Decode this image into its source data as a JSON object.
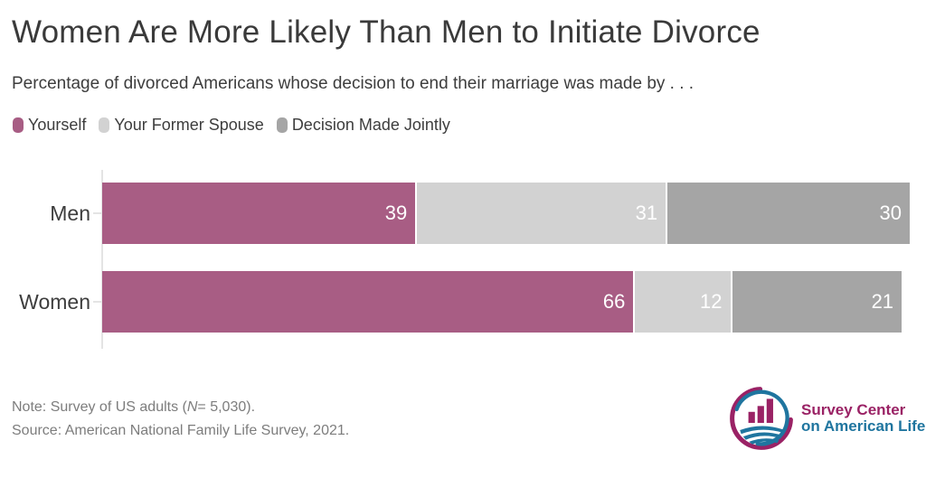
{
  "header": {
    "title": "Women Are More Likely Than Men to Initiate Divorce",
    "subtitle": "Percentage of divorced Americans whose decision to end their marriage was made by . . ."
  },
  "legend": [
    {
      "label": "Yourself",
      "color": "#a85d84"
    },
    {
      "label": "Your Former Spouse",
      "color": "#d2d2d2"
    },
    {
      "label": "Decision Made Jointly",
      "color": "#a5a5a5"
    }
  ],
  "chart_data": {
    "type": "bar",
    "orientation": "horizontal",
    "stacked": true,
    "categories": [
      "Men",
      "Women"
    ],
    "series": [
      {
        "name": "Yourself",
        "color": "#a85d84",
        "values": [
          39,
          66
        ]
      },
      {
        "name": "Your Former Spouse",
        "color": "#d2d2d2",
        "values": [
          31,
          12
        ]
      },
      {
        "name": "Decision Made Jointly",
        "color": "#a5a5a5",
        "values": [
          30,
          21
        ]
      }
    ],
    "xlim": [
      0,
      100
    ],
    "grid": false,
    "value_labels": "inside-right-white",
    "legend_position": "top-left"
  },
  "footer": {
    "note_prefix": "Note: Survey of US adults (",
    "note_n": "N",
    "note_suffix": "= 5,030).",
    "source": "Source: American National Family Life Survey, 2021."
  },
  "logo": {
    "line1": "Survey Center",
    "line2": "on American Life",
    "magenta": "#9a2265",
    "teal": "#1f759f"
  }
}
